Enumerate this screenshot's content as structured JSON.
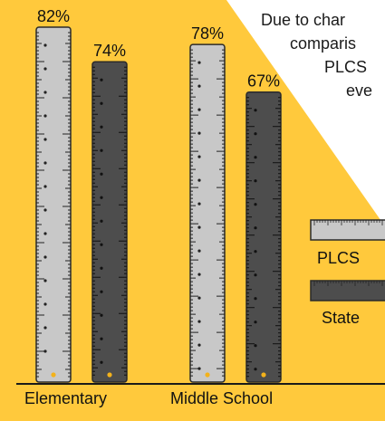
{
  "note": {
    "lines": [
      "Due to char",
      "comparis",
      "PLCS",
      "eve"
    ]
  },
  "legend": {
    "items": [
      {
        "label": "PLCS",
        "color": "#c8c8c8"
      },
      {
        "label": "State",
        "color": "#4d4d4d"
      }
    ]
  },
  "chart_data": {
    "type": "bar",
    "categories": [
      "Elementary",
      "Middle School"
    ],
    "series": [
      {
        "name": "PLCS",
        "values": [
          82,
          78
        ],
        "labels": [
          "82%",
          "78%"
        ],
        "color": "#c8c8c8"
      },
      {
        "name": "State",
        "values": [
          74,
          67
        ],
        "labels": [
          "74%",
          "67%"
        ],
        "color": "#4d4d4d"
      }
    ],
    "ylim": [
      0,
      82
    ],
    "title": "",
    "xlabel": "",
    "ylabel": "",
    "background": "#ffc93c"
  }
}
